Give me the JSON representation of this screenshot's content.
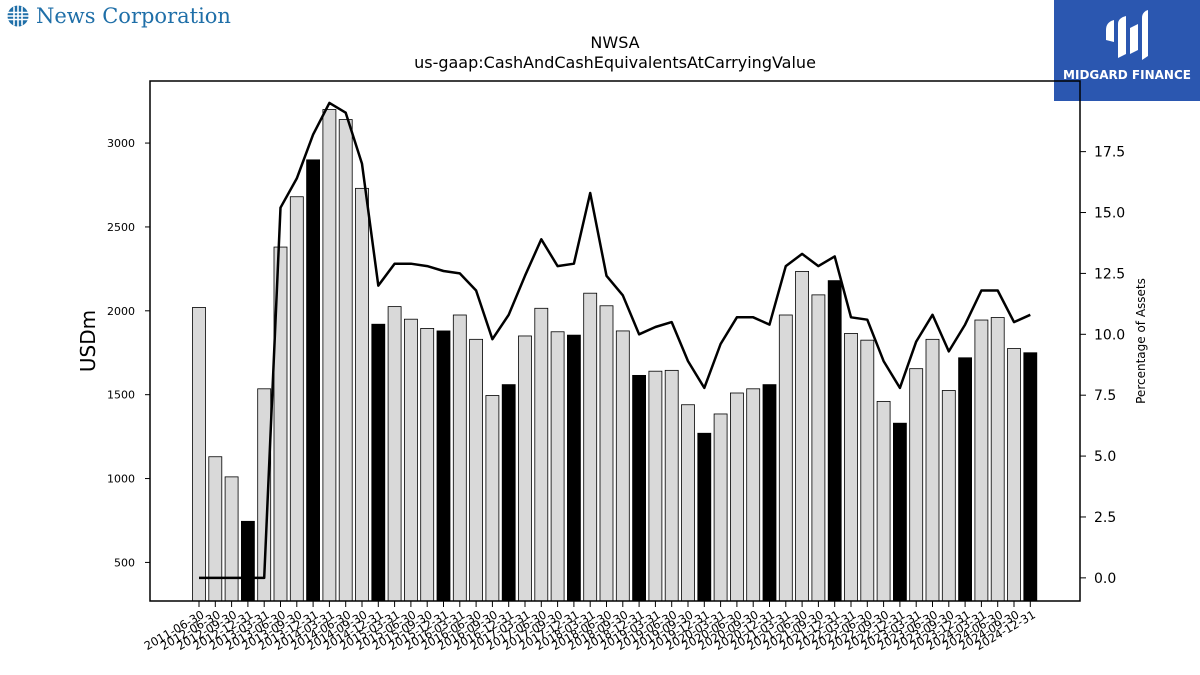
{
  "brand": {
    "name": "News Corporation",
    "icon": "globe-icon",
    "color": "#1f6fa8"
  },
  "watermark": {
    "text": "MIDGARD FINANCE",
    "icon": "midgard-logo-icon",
    "bg": "#2b57b0"
  },
  "chart_data": {
    "type": "bar",
    "title": "NWSA",
    "subtitle": "us-gaap:CashAndCashEquivalentsAtCarryingValue",
    "ylabel": "USDm",
    "y2label": "Percentage of Assets",
    "ylim": [
      270,
      3370
    ],
    "y2lim": [
      -0.95,
      20.4
    ],
    "yticks": [
      500,
      1000,
      1500,
      2000,
      2500,
      3000
    ],
    "y2ticks": [
      "0.0",
      "2.5",
      "5.0",
      "7.5",
      "10.0",
      "12.5",
      "15.0",
      "17.5"
    ],
    "categories": [
      "2011-06-30",
      "2012-06-30",
      "2012-09-30",
      "2012-12-31",
      "2013-03-31",
      "2013-06-30",
      "2013-09-30",
      "2013-12-31",
      "2014-03-31",
      "2014-06-30",
      "2014-09-30",
      "2014-12-31",
      "2015-03-31",
      "2015-06-30",
      "2015-09-30",
      "2015-12-31",
      "2016-03-31",
      "2016-06-30",
      "2016-09-30",
      "2016-12-31",
      "2017-03-31",
      "2017-06-30",
      "2017-09-30",
      "2017-12-31",
      "2018-03-31",
      "2018-06-30",
      "2018-09-30",
      "2018-12-31",
      "2019-03-31",
      "2019-06-30",
      "2019-09-30",
      "2019-12-31",
      "2020-03-31",
      "2020-06-30",
      "2020-09-30",
      "2020-12-31",
      "2021-03-31",
      "2021-06-30",
      "2021-09-30",
      "2021-12-31",
      "2022-03-31",
      "2022-06-30",
      "2022-09-30",
      "2022-12-31",
      "2023-03-31",
      "2023-06-30",
      "2023-09-30",
      "2023-12-31",
      "2024-03-31",
      "2024-06-30",
      "2024-09-30",
      "2024-12-31"
    ],
    "values": [
      2020,
      1130,
      1010,
      745,
      1535,
      2380,
      2680,
      2900,
      3200,
      3140,
      2730,
      1920,
      2025,
      1950,
      1895,
      1880,
      1975,
      1830,
      1495,
      1560,
      1850,
      2015,
      1875,
      1855,
      2105,
      2030,
      1880,
      1615,
      1640,
      1645,
      1440,
      1270,
      1385,
      1510,
      1535,
      1560,
      1975,
      2235,
      2095,
      2180,
      1865,
      1825,
      1460,
      1330,
      1655,
      1830,
      1525,
      1720,
      1945,
      1960,
      1775,
      1750
    ],
    "highlight_indices": [
      3,
      7,
      11,
      15,
      19,
      23,
      27,
      31,
      35,
      39,
      43,
      47,
      51
    ],
    "bar_color": "#d9d9d9",
    "highlight_color": "#000000",
    "series": [
      {
        "name": "Percentage of Assets",
        "axis": "right",
        "values": [
          0.0,
          0.0,
          0.0,
          0.0,
          0.0,
          15.2,
          16.4,
          18.2,
          19.5,
          19.1,
          17.0,
          12.0,
          12.9,
          12.9,
          12.8,
          12.6,
          12.5,
          11.8,
          9.8,
          10.8,
          12.4,
          13.9,
          12.8,
          12.9,
          15.8,
          12.4,
          11.6,
          10.0,
          10.3,
          10.5,
          8.9,
          7.8,
          9.6,
          10.7,
          10.7,
          10.4,
          12.8,
          13.3,
          12.8,
          13.2,
          10.7,
          10.6,
          8.9,
          7.8,
          9.7,
          10.8,
          9.3,
          10.4,
          11.8,
          11.8,
          10.5,
          10.8
        ]
      }
    ],
    "grid": false,
    "legend": "none"
  }
}
